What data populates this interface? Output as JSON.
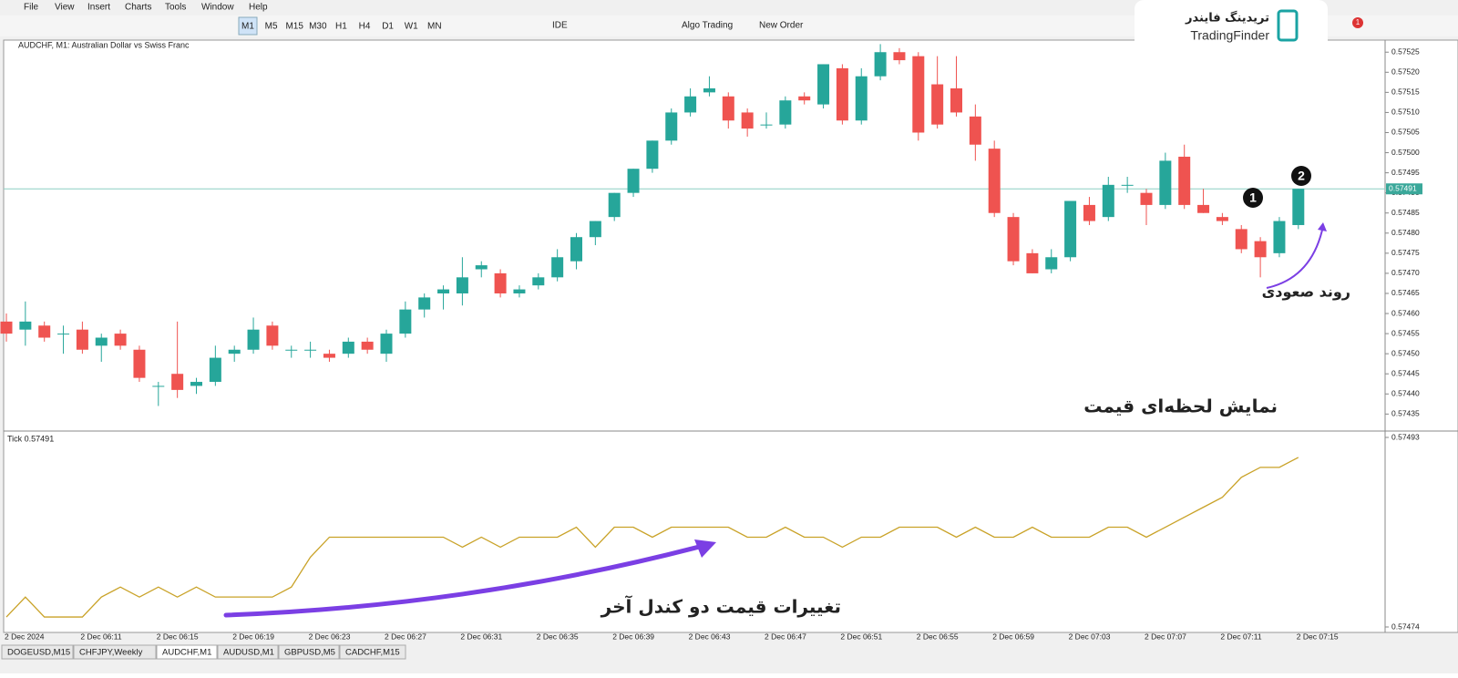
{
  "menu": [
    "File",
    "View",
    "Insert",
    "Charts",
    "Tools",
    "Window",
    "Help"
  ],
  "toolbar": {
    "timeframes": [
      "M1",
      "M5",
      "M15",
      "M30",
      "H1",
      "H4",
      "D1",
      "W1",
      "MN"
    ],
    "ide": "IDE",
    "algo": "Algo Trading",
    "order": "New Order"
  },
  "window": {
    "title": "AUDCHF, M1: Australian Dollar vs Swiss Franc",
    "ylim": [
      0.57528,
      0.57431
    ],
    "yticks": [
      0.57525,
      {
        "value": 0.5752,
        "label": "0.57520"
      },
      0.57515,
      {
        "value": 0.5751,
        "label": "0.57510"
      },
      0.57505,
      {
        "value": 0.575,
        "label": "0.57500"
      },
      0.57495,
      {
        "value": 0.5749,
        "label": "0.57490"
      },
      0.57485,
      {
        "value": 0.5748,
        "label": "0.57480"
      },
      0.57475,
      {
        "value": 0.5747,
        "label": "0.57470"
      },
      0.57465,
      {
        "value": 0.5746,
        "label": "0.57460"
      },
      0.57455,
      {
        "value": 0.5745,
        "label": "0.57450"
      },
      0.57445,
      {
        "value": 0.5744,
        "label": "0.57440"
      },
      0.57435
    ],
    "current_price": 0.57491,
    "candles": [
      {
        "open": 0.57458,
        "high": 0.5746,
        "low": 0.57453,
        "close": 0.57455
      },
      {
        "open": 0.57456,
        "high": 0.57463,
        "low": 0.57452,
        "close": 0.57458
      },
      {
        "open": 0.57457,
        "high": 0.57458,
        "low": 0.57453,
        "close": 0.57454
      },
      {
        "open": 0.57455,
        "high": 0.57457,
        "low": 0.5745,
        "close": 0.57455
      },
      {
        "open": 0.57456,
        "high": 0.57458,
        "low": 0.5745,
        "close": 0.57451
      },
      {
        "open": 0.57452,
        "high": 0.57455,
        "low": 0.57448,
        "close": 0.57454
      },
      {
        "open": 0.57455,
        "high": 0.57456,
        "low": 0.57451,
        "close": 0.57452
      },
      {
        "open": 0.57451,
        "high": 0.57452,
        "low": 0.57443,
        "close": 0.57444
      },
      {
        "open": 0.57442,
        "high": 0.57443,
        "low": 0.57437,
        "close": 0.57442
      },
      {
        "open": 0.57445,
        "high": 0.57458,
        "low": 0.57439,
        "close": 0.57441
      },
      {
        "open": 0.57442,
        "high": 0.57444,
        "low": 0.5744,
        "close": 0.57443
      },
      {
        "open": 0.57443,
        "high": 0.57452,
        "low": 0.57442,
        "close": 0.57449
      },
      {
        "open": 0.5745,
        "high": 0.57452,
        "low": 0.57448,
        "close": 0.57451
      },
      {
        "open": 0.57451,
        "high": 0.57459,
        "low": 0.5745,
        "close": 0.57456
      },
      {
        "open": 0.57457,
        "high": 0.57458,
        "low": 0.57451,
        "close": 0.57452
      },
      {
        "open": 0.57451,
        "high": 0.57452,
        "low": 0.57449,
        "close": 0.57451
      },
      {
        "open": 0.57451,
        "high": 0.57453,
        "low": 0.57449,
        "close": 0.57451
      },
      {
        "open": 0.5745,
        "high": 0.57451,
        "low": 0.57448,
        "close": 0.57449
      },
      {
        "open": 0.5745,
        "high": 0.57454,
        "low": 0.57449,
        "close": 0.57453
      },
      {
        "open": 0.57453,
        "high": 0.57454,
        "low": 0.5745,
        "close": 0.57451
      },
      {
        "open": 0.5745,
        "high": 0.57456,
        "low": 0.57448,
        "close": 0.57455
      },
      {
        "open": 0.57455,
        "high": 0.57463,
        "low": 0.57454,
        "close": 0.57461
      },
      {
        "open": 0.57461,
        "high": 0.57465,
        "low": 0.57459,
        "close": 0.57464
      },
      {
        "open": 0.57465,
        "high": 0.57467,
        "low": 0.57461,
        "close": 0.57466
      },
      {
        "open": 0.57465,
        "high": 0.57474,
        "low": 0.57462,
        "close": 0.57469
      },
      {
        "open": 0.57471,
        "high": 0.57473,
        "low": 0.57469,
        "close": 0.57472
      },
      {
        "open": 0.5747,
        "high": 0.57471,
        "low": 0.57464,
        "close": 0.57465
      },
      {
        "open": 0.57465,
        "high": 0.57467,
        "low": 0.57464,
        "close": 0.57466
      },
      {
        "open": 0.57467,
        "high": 0.5747,
        "low": 0.57466,
        "close": 0.57469
      },
      {
        "open": 0.57469,
        "high": 0.57476,
        "low": 0.57468,
        "close": 0.57474
      },
      {
        "open": 0.57473,
        "high": 0.5748,
        "low": 0.57471,
        "close": 0.57479
      },
      {
        "open": 0.57479,
        "high": 0.57483,
        "low": 0.57477,
        "close": 0.57483
      },
      {
        "open": 0.57484,
        "high": 0.5749,
        "low": 0.57483,
        "close": 0.5749
      },
      {
        "open": 0.5749,
        "high": 0.57496,
        "low": 0.57489,
        "close": 0.57496
      },
      {
        "open": 0.57496,
        "high": 0.57503,
        "low": 0.57495,
        "close": 0.57503
      },
      {
        "open": 0.57503,
        "high": 0.57511,
        "low": 0.57502,
        "close": 0.5751
      },
      {
        "open": 0.5751,
        "high": 0.57516,
        "low": 0.57509,
        "close": 0.57514
      },
      {
        "open": 0.57515,
        "high": 0.57519,
        "low": 0.57514,
        "close": 0.57516
      },
      {
        "open": 0.57514,
        "high": 0.57515,
        "low": 0.57506,
        "close": 0.57508
      },
      {
        "open": 0.5751,
        "high": 0.57511,
        "low": 0.57504,
        "close": 0.57506
      },
      {
        "open": 0.57507,
        "high": 0.5751,
        "low": 0.57506,
        "close": 0.57507
      },
      {
        "open": 0.57507,
        "high": 0.57514,
        "low": 0.57506,
        "close": 0.57513
      },
      {
        "open": 0.57514,
        "high": 0.57515,
        "low": 0.57512,
        "close": 0.57513
      },
      {
        "open": 0.57512,
        "high": 0.57522,
        "low": 0.57511,
        "close": 0.57522
      },
      {
        "open": 0.57521,
        "high": 0.57522,
        "low": 0.57507,
        "close": 0.57508
      },
      {
        "open": 0.57508,
        "high": 0.57521,
        "low": 0.57507,
        "close": 0.57519
      },
      {
        "open": 0.57519,
        "high": 0.57527,
        "low": 0.57518,
        "close": 0.57525
      },
      {
        "open": 0.57525,
        "high": 0.57526,
        "low": 0.57522,
        "close": 0.57523
      },
      {
        "open": 0.57524,
        "high": 0.57525,
        "low": 0.57503,
        "close": 0.57505
      },
      {
        "open": 0.57517,
        "high": 0.57524,
        "low": 0.57506,
        "close": 0.57507
      },
      {
        "open": 0.57516,
        "high": 0.57524,
        "low": 0.57509,
        "close": 0.5751
      },
      {
        "open": 0.57509,
        "high": 0.57512,
        "low": 0.57498,
        "close": 0.57502
      },
      {
        "open": 0.57501,
        "high": 0.57503,
        "low": 0.57484,
        "close": 0.57485
      },
      {
        "open": 0.57484,
        "high": 0.57485,
        "low": 0.57472,
        "close": 0.57473
      },
      {
        "open": 0.57475,
        "high": 0.57476,
        "low": 0.5747,
        "close": 0.5747
      },
      {
        "open": 0.57471,
        "high": 0.57476,
        "low": 0.5747,
        "close": 0.57474
      },
      {
        "open": 0.57474,
        "high": 0.57488,
        "low": 0.57473,
        "close": 0.57488
      },
      {
        "open": 0.57487,
        "high": 0.57489,
        "low": 0.57482,
        "close": 0.57483
      },
      {
        "open": 0.57484,
        "high": 0.57494,
        "low": 0.57483,
        "close": 0.57492
      },
      {
        "open": 0.57492,
        "high": 0.57494,
        "low": 0.5749,
        "close": 0.57492
      },
      {
        "open": 0.5749,
        "high": 0.57491,
        "low": 0.57482,
        "close": 0.57487
      },
      {
        "open": 0.57487,
        "high": 0.575,
        "low": 0.57486,
        "close": 0.57498
      },
      {
        "open": 0.57499,
        "high": 0.57502,
        "low": 0.57486,
        "close": 0.57487
      },
      {
        "open": 0.57487,
        "high": 0.57491,
        "low": 0.57485,
        "close": 0.57485
      },
      {
        "open": 0.57484,
        "high": 0.57485,
        "low": 0.57482,
        "close": 0.57483
      },
      {
        "open": 0.57481,
        "high": 0.57482,
        "low": 0.57475,
        "close": 0.57476
      },
      {
        "open": 0.57478,
        "high": 0.57479,
        "low": 0.57469,
        "close": 0.57474
      },
      {
        "open": 0.57475,
        "high": 0.57484,
        "low": 0.57474,
        "close": 0.57483
      },
      {
        "open": 0.57482,
        "high": 0.57491,
        "low": 0.57481,
        "close": 0.57491
      }
    ],
    "time_labels": [
      "2 Dec 2024",
      "2 Dec 06:11",
      "2 Dec 06:15",
      "2 Dec 06:19",
      "2 Dec 06:23",
      "2 Dec 06:27",
      "2 Dec 06:31",
      "2 Dec 06:35",
      "2 Dec 06:39",
      "2 Dec 06:43",
      "2 Dec 06:47",
      "2 Dec 06:51",
      "2 Dec 06:55",
      "2 Dec 06:59",
      "2 Dec 07:03",
      "2 Dec 07:07",
      "2 Dec 07:11",
      "2 Dec 07:15"
    ]
  },
  "indicator": {
    "label": "Tick 0.57491",
    "ylim": [
      0.57493,
      0.57474
    ],
    "yticks": [
      0.57493,
      0.57474
    ],
    "values": [
      0.57475,
      0.57477,
      0.57475,
      0.57475,
      0.57475,
      0.57477,
      0.57478,
      0.57477,
      0.57478,
      0.57477,
      0.57478,
      0.57477,
      0.57477,
      0.57477,
      0.57477,
      0.57478,
      0.57481,
      0.57483,
      0.57483,
      0.57483,
      0.57483,
      0.57483,
      0.57483,
      0.57483,
      0.57482,
      0.57483,
      0.57482,
      0.57483,
      0.57483,
      0.57483,
      0.57484,
      0.57482,
      0.57484,
      0.57484,
      0.57483,
      0.57484,
      0.57484,
      0.57484,
      0.57484,
      0.57483,
      0.57483,
      0.57484,
      0.57483,
      0.57483,
      0.57482,
      0.57483,
      0.57483,
      0.57484,
      0.57484,
      0.57484,
      0.57483,
      0.57484,
      0.57483,
      0.57483,
      0.57484,
      0.57483,
      0.57483,
      0.57483,
      0.57484,
      0.57484,
      0.57483,
      0.57484,
      0.57485,
      0.57486,
      0.57487,
      0.57489,
      0.5749,
      0.5749,
      0.57491
    ]
  },
  "tabs": [
    "DOGEUSD,M15",
    "CHFJPY,Weekly",
    "AUDCHF,M1",
    "AUDUSD,M1",
    "GBPUSD,M5",
    "CADCHF,M15"
  ],
  "logo": {
    "fa": "تریدینگ فایندر",
    "en": "TradingFinder"
  },
  "notification_count": "1",
  "annotations": {
    "marker1": "1",
    "marker2": "2",
    "uptrend": "روند صعودی",
    "live_price": "نمایش لحظه‌ای قیمت",
    "last_two": "تغییرات قیمت دو کندل آخر"
  }
}
